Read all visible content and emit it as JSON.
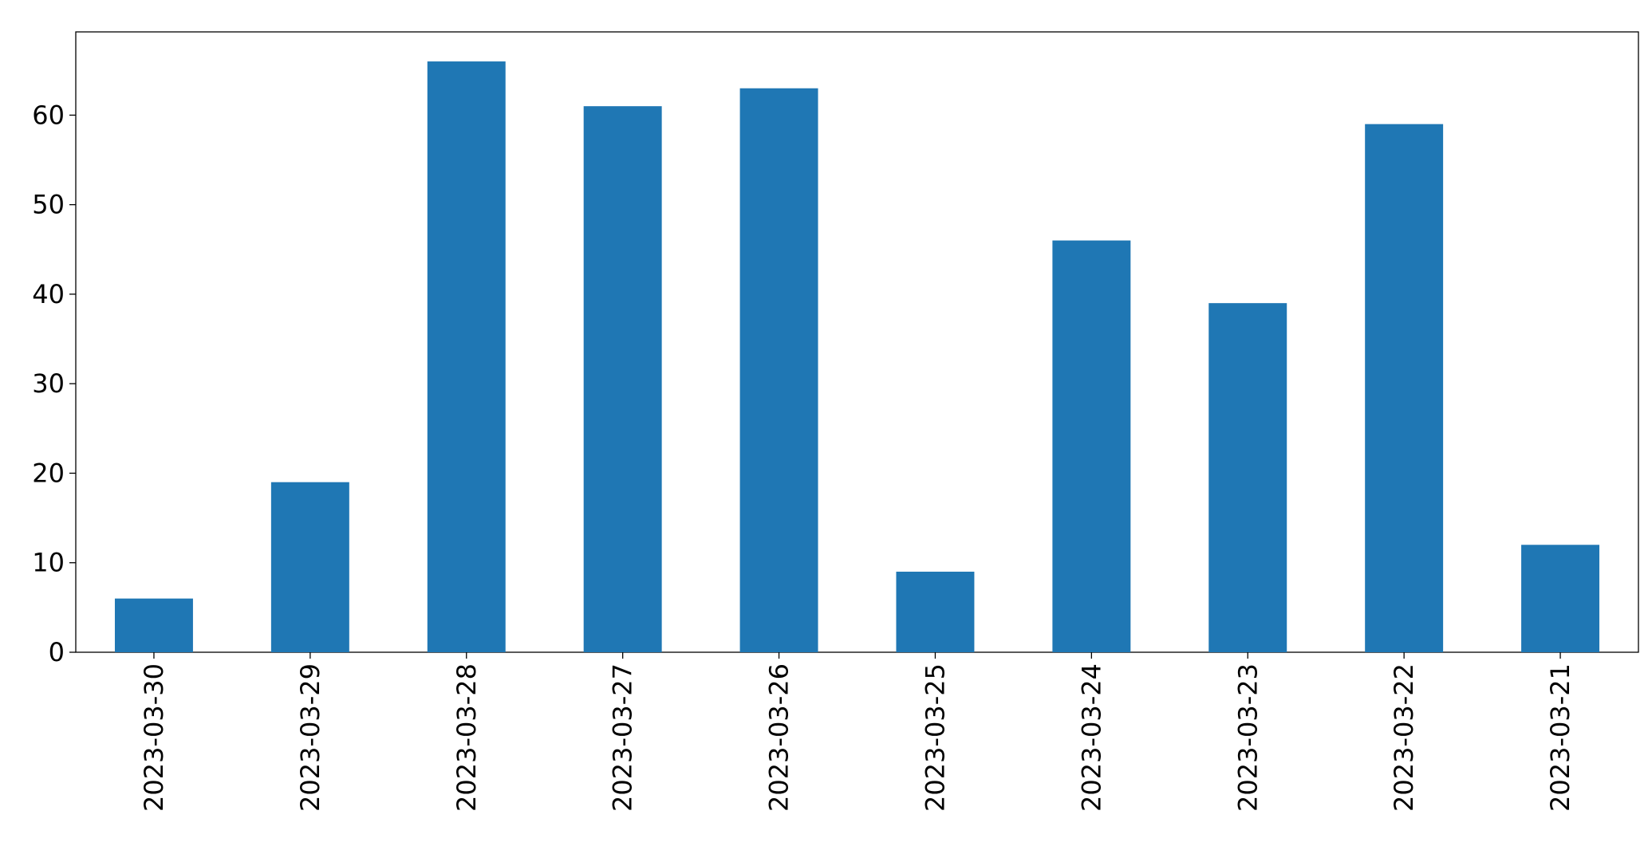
{
  "chart_data": {
    "type": "bar",
    "categories": [
      "2023-03-30",
      "2023-03-29",
      "2023-03-28",
      "2023-03-27",
      "2023-03-26",
      "2023-03-25",
      "2023-03-24",
      "2023-03-23",
      "2023-03-22",
      "2023-03-21"
    ],
    "values": [
      6,
      19,
      66,
      61,
      63,
      9,
      46,
      39,
      59,
      12
    ],
    "color": "#1f77b4",
    "ylim": [
      0,
      69.3
    ],
    "yticks": [
      0,
      10,
      20,
      30,
      40,
      50,
      60
    ],
    "grid": false
  }
}
